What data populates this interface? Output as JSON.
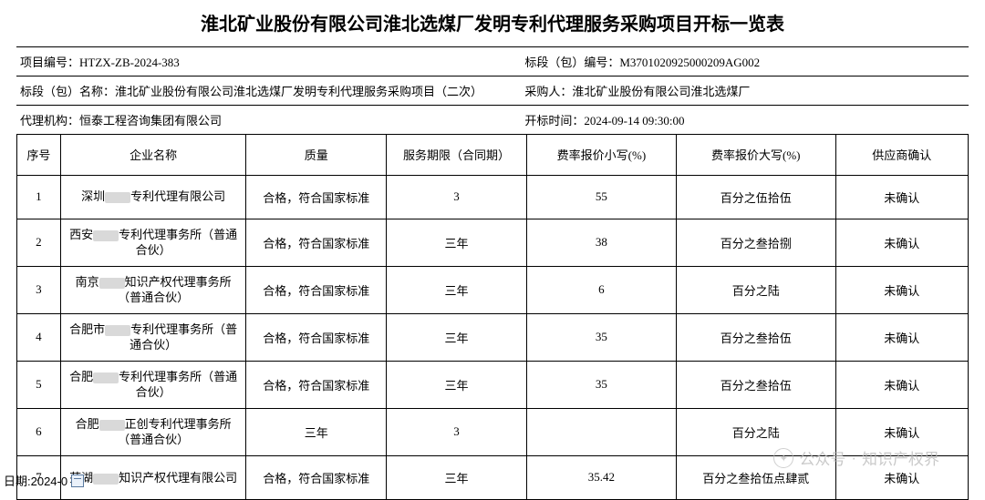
{
  "title": "淮北矿业股份有限公司淮北选煤厂发明专利代理服务采购项目开标一览表",
  "meta": {
    "project_no_label": "项目编号：",
    "project_no": "HTZX-ZB-2024-383",
    "lot_no_label": "标段（包）编号：",
    "lot_no": "M3701020925000209AG002",
    "lot_name_label": "标段（包）名称：",
    "lot_name": "淮北矿业股份有限公司淮北选煤厂发明专利代理服务采购项目（二次）",
    "purchaser_label": "采购人：",
    "purchaser": "淮北矿业股份有限公司淮北选煤厂",
    "agency_label": "代理机构：",
    "agency": "恒泰工程咨询集团有限公司",
    "open_time_label": "开标时间：",
    "open_time": "2024-09-14 09:30:00"
  },
  "columns": {
    "seq": "序号",
    "company": "企业名称",
    "quality": "质量",
    "period": "服务期限（合同期）",
    "rate_num": "费率报价小写(%)",
    "rate_cn": "费率报价大写(%)",
    "confirm": "供应商确认"
  },
  "rows": [
    {
      "seq": "1",
      "company_pre": "深圳",
      "company_post": "专利代理有限公司",
      "quality": "合格，符合国家标准",
      "period": "3",
      "rate_num": "55",
      "rate_cn": "百分之伍拾伍",
      "confirm": "未确认"
    },
    {
      "seq": "2",
      "company_pre": "西安",
      "company_post": "专利代理事务所（普通合伙）",
      "quality": "合格，符合国家标准",
      "period": "三年",
      "rate_num": "38",
      "rate_cn": "百分之叁拾捌",
      "confirm": "未确认"
    },
    {
      "seq": "3",
      "company_pre": "南京",
      "company_post": "知识产权代理事务所（普通合伙）",
      "quality": "合格，符合国家标准",
      "period": "三年",
      "rate_num": "6",
      "rate_cn": "百分之陆",
      "confirm": "未确认"
    },
    {
      "seq": "4",
      "company_pre": "合肥市",
      "company_post": "专利代理事务所（普通合伙）",
      "quality": "合格，符合国家标准",
      "period": "三年",
      "rate_num": "35",
      "rate_cn": "百分之叁拾伍",
      "confirm": "未确认"
    },
    {
      "seq": "5",
      "company_pre": "合肥",
      "company_post": "专利代理事务所（普通合伙）",
      "quality": "合格，符合国家标准",
      "period": "三年",
      "rate_num": "35",
      "rate_cn": "百分之叁拾伍",
      "confirm": "未确认"
    },
    {
      "seq": "6",
      "company_pre": "合肥",
      "company_post": "正创专利代理事务所（普通合伙）",
      "quality": "三年",
      "period": "3",
      "rate_num": "",
      "rate_cn": "百分之陆",
      "confirm": "未确认"
    },
    {
      "seq": "7",
      "company_pre": "芜湖",
      "company_post": "知识产权代理有限公司",
      "quality": "合格，符合国家标准",
      "period": "三年",
      "rate_num": "35.42",
      "rate_cn": "百分之叁拾伍点肆贰",
      "confirm": "未确认"
    }
  ],
  "footer": {
    "date_label": "日期:2024-0"
  },
  "watermark": {
    "label1": "公众号",
    "sep": "·",
    "label2": "知识产权界"
  },
  "style": {
    "border_color": "#000000",
    "text_color": "#000000",
    "background": "#ffffff",
    "watermark_color": "#b8b8b8",
    "redact_color": "#d9d9d9"
  }
}
